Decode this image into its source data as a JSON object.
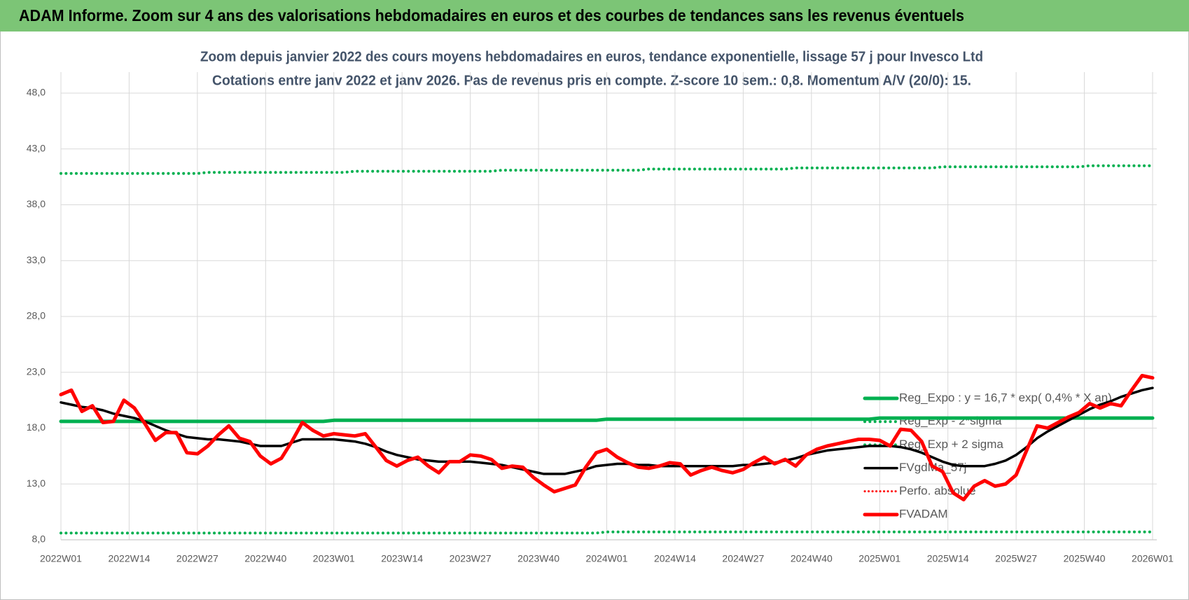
{
  "header": {
    "title": "ADAM Informe. Zoom sur 4 ans des valorisations hebdomadaires en euros et des courbes de tendances sans les revenus éventuels"
  },
  "chart_data": {
    "type": "line",
    "title": "Zoom depuis janvier 2022 des cours moyens hebdomadaires en euros, tendance exponentielle, lissage 57 j pour Invesco Ltd",
    "subtitle": "Cotations entre janv 2022 et janv 2026. Pas de revenus pris en compte. Z-score 10 sem.: 0,8. Momentum A/V (20/0):  15.",
    "grid": true,
    "legend": "lower right",
    "xlim": [
      0,
      208
    ],
    "xticks": [
      {
        "value": 0,
        "label": "2022W01"
      },
      {
        "value": 13,
        "label": "2022W14"
      },
      {
        "value": 26,
        "label": "2022W27"
      },
      {
        "value": 39,
        "label": "2022W40"
      },
      {
        "value": 52,
        "label": "2023W01"
      },
      {
        "value": 65,
        "label": "2023W14"
      },
      {
        "value": 78,
        "label": "2023W27"
      },
      {
        "value": 91,
        "label": "2023W40"
      },
      {
        "value": 104,
        "label": "2024W01"
      },
      {
        "value": 117,
        "label": "2024W14"
      },
      {
        "value": 130,
        "label": "2024W27"
      },
      {
        "value": 143,
        "label": "2024W40"
      },
      {
        "value": 156,
        "label": "2025W01"
      },
      {
        "value": 169,
        "label": "2025W14"
      },
      {
        "value": 182,
        "label": "2025W27"
      },
      {
        "value": 195,
        "label": "2025W40"
      },
      {
        "value": 208,
        "label": "2026W01"
      }
    ],
    "ylim": [
      8,
      48
    ],
    "yticks": [
      {
        "value": 8,
        "label": "8,0"
      },
      {
        "value": 13,
        "label": "13,0"
      },
      {
        "value": 18,
        "label": "18,0"
      },
      {
        "value": 23,
        "label": "23,0"
      },
      {
        "value": 28,
        "label": "28,0"
      },
      {
        "value": 33,
        "label": "33,0"
      },
      {
        "value": 38,
        "label": "38,0"
      },
      {
        "value": 43,
        "label": "43,0"
      },
      {
        "value": 48,
        "label": "48,0"
      }
    ],
    "x": [
      0,
      2,
      4,
      6,
      8,
      10,
      12,
      14,
      16,
      18,
      20,
      22,
      24,
      26,
      28,
      30,
      32,
      34,
      36,
      38,
      40,
      42,
      44,
      46,
      48,
      50,
      52,
      54,
      56,
      58,
      60,
      62,
      64,
      66,
      68,
      70,
      72,
      74,
      76,
      78,
      80,
      82,
      84,
      86,
      88,
      90,
      92,
      94,
      96,
      98,
      100,
      102,
      104,
      106,
      108,
      110,
      112,
      114,
      116,
      118,
      120,
      122,
      124,
      126,
      128,
      130,
      132,
      134,
      136,
      138,
      140,
      142,
      144,
      146,
      148,
      150,
      152,
      154,
      156,
      158,
      160,
      162,
      164,
      166,
      168,
      170,
      172,
      174,
      176,
      178,
      180,
      182,
      184,
      186,
      188,
      190,
      192,
      194,
      196,
      198,
      200,
      202,
      204,
      206,
      208
    ],
    "series": [
      {
        "name": "Reg_Expo : y = 16,7 * exp( 0,4% * X  an)",
        "color": "#00b050",
        "style": "solid",
        "width": 5,
        "values": [
          18.6,
          18.6,
          18.6,
          18.6,
          18.6,
          18.6,
          18.6,
          18.6,
          18.6,
          18.6,
          18.6,
          18.6,
          18.6,
          18.6,
          18.6,
          18.6,
          18.6,
          18.6,
          18.6,
          18.6,
          18.6,
          18.6,
          18.6,
          18.6,
          18.6,
          18.6,
          18.7,
          18.7,
          18.7,
          18.7,
          18.7,
          18.7,
          18.7,
          18.7,
          18.7,
          18.7,
          18.7,
          18.7,
          18.7,
          18.7,
          18.7,
          18.7,
          18.7,
          18.7,
          18.7,
          18.7,
          18.7,
          18.7,
          18.7,
          18.7,
          18.7,
          18.7,
          18.8,
          18.8,
          18.8,
          18.8,
          18.8,
          18.8,
          18.8,
          18.8,
          18.8,
          18.8,
          18.8,
          18.8,
          18.8,
          18.8,
          18.8,
          18.8,
          18.8,
          18.8,
          18.8,
          18.8,
          18.8,
          18.8,
          18.8,
          18.8,
          18.8,
          18.8,
          18.9,
          18.9,
          18.9,
          18.9,
          18.9,
          18.9,
          18.9,
          18.9,
          18.9,
          18.9,
          18.9,
          18.9,
          18.9,
          18.9,
          18.9,
          18.9,
          18.9,
          18.9,
          18.9,
          18.9,
          18.9,
          18.9,
          18.9,
          18.9,
          18.9,
          18.9,
          18.9
        ]
      },
      {
        "name": "Reg_Exp - 2*sigma",
        "color": "#00b050",
        "style": "dotted",
        "width": 4,
        "values": [
          8.6,
          8.6,
          8.6,
          8.6,
          8.6,
          8.6,
          8.6,
          8.6,
          8.6,
          8.6,
          8.6,
          8.6,
          8.6,
          8.6,
          8.6,
          8.6,
          8.6,
          8.6,
          8.6,
          8.6,
          8.6,
          8.6,
          8.6,
          8.6,
          8.6,
          8.6,
          8.6,
          8.6,
          8.6,
          8.6,
          8.6,
          8.6,
          8.6,
          8.6,
          8.6,
          8.6,
          8.6,
          8.6,
          8.6,
          8.6,
          8.6,
          8.6,
          8.6,
          8.6,
          8.6,
          8.6,
          8.6,
          8.6,
          8.6,
          8.6,
          8.6,
          8.6,
          8.7,
          8.7,
          8.7,
          8.7,
          8.7,
          8.7,
          8.7,
          8.7,
          8.7,
          8.7,
          8.7,
          8.7,
          8.7,
          8.7,
          8.7,
          8.7,
          8.7,
          8.7,
          8.7,
          8.7,
          8.7,
          8.7,
          8.7,
          8.7,
          8.7,
          8.7,
          8.7,
          8.7,
          8.7,
          8.7,
          8.7,
          8.7,
          8.7,
          8.7,
          8.7,
          8.7,
          8.7,
          8.7,
          8.7,
          8.7,
          8.7,
          8.7,
          8.7,
          8.7,
          8.7,
          8.7,
          8.7,
          8.7,
          8.7,
          8.7,
          8.7,
          8.7,
          8.7
        ]
      },
      {
        "name": "Reg_Exp + 2 sigma",
        "color": "#00b050",
        "style": "dotted",
        "width": 4,
        "values": [
          40.8,
          40.8,
          40.8,
          40.8,
          40.8,
          40.8,
          40.8,
          40.8,
          40.8,
          40.8,
          40.8,
          40.8,
          40.8,
          40.8,
          40.9,
          40.9,
          40.9,
          40.9,
          40.9,
          40.9,
          40.9,
          40.9,
          40.9,
          40.9,
          40.9,
          40.9,
          40.9,
          40.9,
          41.0,
          41.0,
          41.0,
          41.0,
          41.0,
          41.0,
          41.0,
          41.0,
          41.0,
          41.0,
          41.0,
          41.0,
          41.0,
          41.0,
          41.1,
          41.1,
          41.1,
          41.1,
          41.1,
          41.1,
          41.1,
          41.1,
          41.1,
          41.1,
          41.1,
          41.1,
          41.1,
          41.1,
          41.2,
          41.2,
          41.2,
          41.2,
          41.2,
          41.2,
          41.2,
          41.2,
          41.2,
          41.2,
          41.2,
          41.2,
          41.2,
          41.2,
          41.3,
          41.3,
          41.3,
          41.3,
          41.3,
          41.3,
          41.3,
          41.3,
          41.3,
          41.3,
          41.3,
          41.3,
          41.3,
          41.3,
          41.4,
          41.4,
          41.4,
          41.4,
          41.4,
          41.4,
          41.4,
          41.4,
          41.4,
          41.4,
          41.4,
          41.4,
          41.4,
          41.4,
          41.5,
          41.5,
          41.5,
          41.5,
          41.5,
          41.5,
          41.5
        ]
      },
      {
        "name": "FVgdMa_57j",
        "color": "#000000",
        "style": "solid",
        "width": 3.5,
        "values": [
          20.3,
          20.1,
          19.9,
          19.8,
          19.6,
          19.3,
          19.1,
          18.9,
          18.6,
          18.2,
          17.8,
          17.5,
          17.2,
          17.1,
          17.0,
          17.0,
          16.9,
          16.8,
          16.6,
          16.4,
          16.4,
          16.4,
          16.7,
          17.0,
          17.0,
          17.0,
          17.0,
          16.9,
          16.8,
          16.6,
          16.3,
          15.9,
          15.6,
          15.4,
          15.2,
          15.1,
          15.0,
          15.0,
          15.0,
          15.0,
          14.9,
          14.8,
          14.7,
          14.5,
          14.3,
          14.1,
          13.9,
          13.9,
          13.9,
          14.1,
          14.3,
          14.6,
          14.7,
          14.8,
          14.8,
          14.7,
          14.7,
          14.6,
          14.6,
          14.6,
          14.6,
          14.6,
          14.6,
          14.6,
          14.6,
          14.7,
          14.7,
          14.8,
          14.9,
          15.1,
          15.3,
          15.6,
          15.8,
          16.0,
          16.1,
          16.2,
          16.3,
          16.4,
          16.4,
          16.4,
          16.3,
          16.1,
          15.8,
          15.4,
          15.0,
          14.7,
          14.6,
          14.6,
          14.6,
          14.8,
          15.1,
          15.6,
          16.3,
          17.1,
          17.7,
          18.2,
          18.7,
          19.2,
          19.7,
          20.1,
          20.4,
          20.8,
          21.1,
          21.4,
          21.6
        ]
      },
      {
        "name": "Perfo. absolue",
        "color": "#ff0000",
        "style": "dotted",
        "width": 3,
        "values": [
          null,
          null,
          null,
          null,
          null,
          null,
          null,
          null,
          null,
          null,
          null,
          null,
          null,
          null,
          null,
          null,
          null,
          null,
          null,
          null,
          null,
          null,
          null,
          null,
          null,
          null,
          null,
          null,
          null,
          null,
          null,
          null,
          null,
          null,
          null,
          null,
          null,
          null,
          null,
          null,
          null,
          null,
          null,
          null,
          null,
          null,
          null,
          null,
          null,
          null,
          null,
          null,
          null,
          null,
          null,
          null,
          null,
          null,
          null,
          null,
          null,
          null,
          null,
          null,
          null,
          null,
          null,
          null,
          null,
          null,
          null,
          null,
          null,
          null,
          null,
          null,
          null,
          null,
          null,
          null,
          null,
          null,
          null,
          null,
          null,
          null,
          null,
          null,
          null,
          null,
          null,
          null,
          null,
          null,
          null,
          null,
          null,
          null,
          null,
          null,
          null,
          null,
          null,
          null,
          null
        ]
      },
      {
        "name": "FVADAM",
        "color": "#ff0000",
        "style": "solid",
        "width": 5,
        "values": [
          21.0,
          21.4,
          19.5,
          20.0,
          18.5,
          18.6,
          20.5,
          19.8,
          18.4,
          16.9,
          17.6,
          17.6,
          15.8,
          15.7,
          16.4,
          17.4,
          18.2,
          17.1,
          16.8,
          15.5,
          14.8,
          15.3,
          16.8,
          18.5,
          17.8,
          17.3,
          17.5,
          17.4,
          17.3,
          17.5,
          16.3,
          15.1,
          14.6,
          15.1,
          15.4,
          14.6,
          14.0,
          15.0,
          15.0,
          15.6,
          15.5,
          15.2,
          14.4,
          14.6,
          14.5,
          13.6,
          12.9,
          12.3,
          12.6,
          12.9,
          14.5,
          15.8,
          16.1,
          15.4,
          14.9,
          14.5,
          14.4,
          14.6,
          14.9,
          14.8,
          13.8,
          14.2,
          14.5,
          14.2,
          14.0,
          14.3,
          14.9,
          15.4,
          14.8,
          15.2,
          14.6,
          15.6,
          16.1,
          16.4,
          16.6,
          16.8,
          17.0,
          17.0,
          16.9,
          16.4,
          17.9,
          17.8,
          16.8,
          14.6,
          14.1,
          12.2,
          11.6,
          12.8,
          13.3,
          12.8,
          13.0,
          13.8,
          16.0,
          18.2,
          18.0,
          18.5,
          19.0,
          19.4,
          20.2,
          19.8,
          20.2,
          20.0,
          21.4,
          22.7,
          22.5
        ]
      }
    ]
  }
}
